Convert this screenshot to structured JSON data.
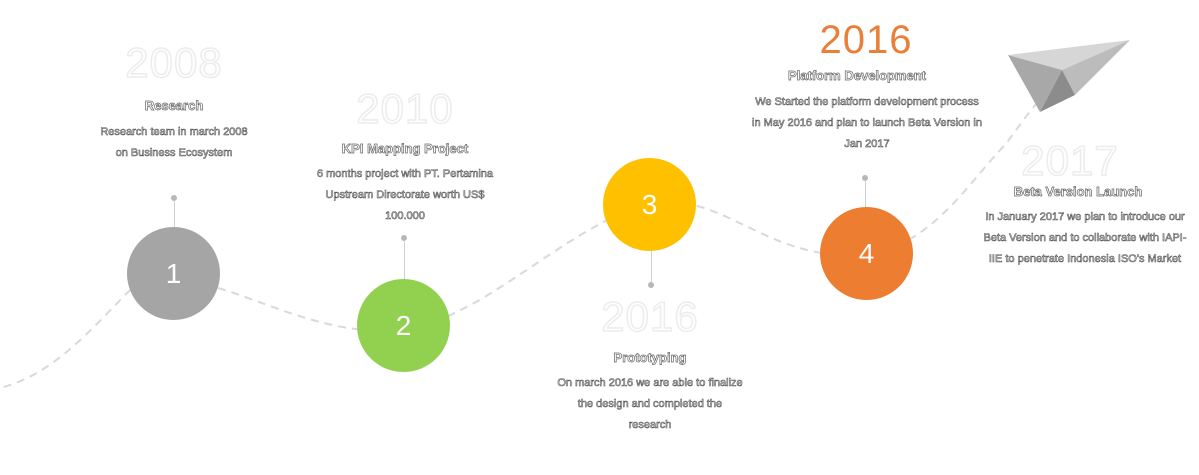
{
  "steps": [
    {
      "number": "1",
      "year": "2008",
      "title": "Research",
      "description": "Research team in march 2008 on Business Ecosystem",
      "color": "#a5a5a5",
      "highlight": false
    },
    {
      "number": "2",
      "year": "2010",
      "title": "KPI Mapping Project",
      "description": "6 months project with PT. Pertamina Upstream Directorate worth US$ 100.000",
      "color": "#92d050",
      "highlight": false
    },
    {
      "number": "3",
      "year": "2016",
      "title": "Prototyping",
      "description": "On march 2016 we are able to finalize the design and completed the research",
      "color": "#ffc000",
      "highlight": false
    },
    {
      "number": "4",
      "year": "2016",
      "title": "Platform Development",
      "description": "We Started the platform development process in May 2016 and plan to launch Beta Version in Jan 2017",
      "color": "#ed7d31",
      "highlight": true
    },
    {
      "number": "",
      "year": "2017",
      "title": "Beta Version Launch",
      "description": "In January 2017 we plan to introduce our Beta Version and to collaborate with IAPI-IIE to penetrate Indonesia ISO's Market",
      "color": "",
      "highlight": false
    }
  ],
  "icons": {
    "end": "paper-plane-icon"
  },
  "colors": {
    "path": "#d9d9d9",
    "connector": "#cfcfcf"
  }
}
